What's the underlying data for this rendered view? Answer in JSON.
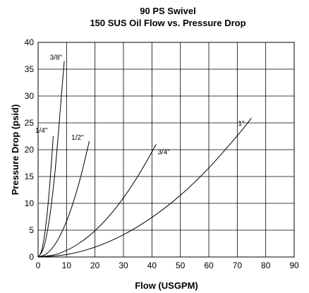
{
  "chart_data": {
    "type": "line",
    "title": "90 PS Swivel",
    "subtitle": "150 SUS Oil Flow vs. Pressure Drop",
    "xlabel": "Flow (USGPM)",
    "ylabel": "Pressure Drop (psid)",
    "xlim": [
      0,
      90
    ],
    "ylim": [
      0,
      40
    ],
    "xticks": [
      0,
      10,
      20,
      30,
      40,
      50,
      60,
      70,
      80,
      90
    ],
    "yticks": [
      0,
      5,
      10,
      15,
      20,
      25,
      30,
      35,
      40
    ],
    "grid": true,
    "legend": "none",
    "series": [
      {
        "name": "1/4\"",
        "points": [
          [
            0,
            0
          ],
          [
            1,
            0.8
          ],
          [
            2,
            3.2
          ],
          [
            3,
            7.2
          ],
          [
            4,
            12.8
          ],
          [
            5,
            20
          ],
          [
            5.3,
            22.5
          ]
        ]
      },
      {
        "name": "3/8\"",
        "points": [
          [
            0,
            0
          ],
          [
            2,
            1.8
          ],
          [
            4,
            7.2
          ],
          [
            6,
            16.2
          ],
          [
            8,
            28.8
          ],
          [
            9.2,
            36.5
          ]
        ]
      },
      {
        "name": "1/2\"",
        "points": [
          [
            0,
            0
          ],
          [
            3,
            0.6
          ],
          [
            6,
            2.4
          ],
          [
            9,
            5.4
          ],
          [
            12,
            9.6
          ],
          [
            15,
            15
          ],
          [
            18,
            21.6
          ]
        ]
      },
      {
        "name": "3/4\"",
        "points": [
          [
            0,
            0
          ],
          [
            7,
            0.6
          ],
          [
            14,
            2.4
          ],
          [
            21,
            5.4
          ],
          [
            28,
            9.6
          ],
          [
            35,
            15
          ],
          [
            41.5,
            21
          ]
        ]
      },
      {
        "name": "1\"",
        "points": [
          [
            0,
            0
          ],
          [
            10,
            0.46
          ],
          [
            20,
            1.84
          ],
          [
            30,
            4.15
          ],
          [
            40,
            7.38
          ],
          [
            50,
            11.5
          ],
          [
            60,
            16.6
          ],
          [
            70,
            22.6
          ],
          [
            75,
            25.9
          ]
        ]
      }
    ]
  }
}
